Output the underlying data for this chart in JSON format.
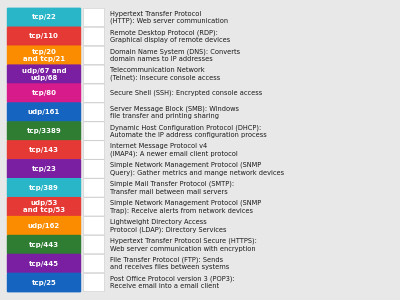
{
  "background_color": "#e8e8e8",
  "entries": [
    {
      "label": "tcp/22",
      "color": "#29b6c8",
      "description": "Hypertext Transfer Protocol\n(HTTP): Web server communication"
    },
    {
      "label": "tcp/110",
      "color": "#e53935",
      "description": "Remote Desktop Protocol (RDP):\nGraphical display of remote devices"
    },
    {
      "label": "tcp/20\nand tcp/21",
      "color": "#fb8c00",
      "description": "Domain Name System (DNS): Converts\ndomain names to IP addresses"
    },
    {
      "label": "udp/67 and\nudp/68",
      "color": "#7b1fa2",
      "description": "Telecommunication Network\n(Telnet): Insecure console access"
    },
    {
      "label": "tcp/80",
      "color": "#d81b8a",
      "description": "Secure Shell (SSH): Encrypted console access"
    },
    {
      "label": "udp/161",
      "color": "#1565c0",
      "description": "Server Message Block (SMB): Windows\nfile transfer and printing sharing"
    },
    {
      "label": "tcp/3389",
      "color": "#2e7d32",
      "description": "Dynamic Host Configuration Protocol (DHCP):\nAutomate the IP address configuration process"
    },
    {
      "label": "tcp/143",
      "color": "#e53935",
      "description": "Internet Message Protocol v4\n(IMAP4): A newer email client protocol"
    },
    {
      "label": "tcp/23",
      "color": "#7b1fa2",
      "description": "Simple Network Management Protocol (SNMP\nQuery): Gather metrics and mange network devices"
    },
    {
      "label": "tcp/389",
      "color": "#29b6c8",
      "description": "Simple Mail Transfer Protocol (SMTP):\nTransfer mail between mail servers"
    },
    {
      "label": "udp/53\nand tcp/53",
      "color": "#e53935",
      "description": "Simple Network Management Protocol (SNMP\nTrap): Receive alerts from network devices"
    },
    {
      "label": "udp/162",
      "color": "#fb8c00",
      "description": "Lightweight Directory Access\nProtocol (LDAP): Directory Services"
    },
    {
      "label": "tcp/443",
      "color": "#2e7d32",
      "description": "Hypertext Transfer Protocol Secure (HTTPS):\nWeb server communication with encryption"
    },
    {
      "label": "tcp/445",
      "color": "#7b1fa2",
      "description": "File Transfer Protocol (FTP): Sends\nand receives files between systems"
    },
    {
      "label": "tcp/25",
      "color": "#1565c0",
      "description": "Post Office Protocol version 3 (POP3):\nReceive email into a email client"
    }
  ]
}
